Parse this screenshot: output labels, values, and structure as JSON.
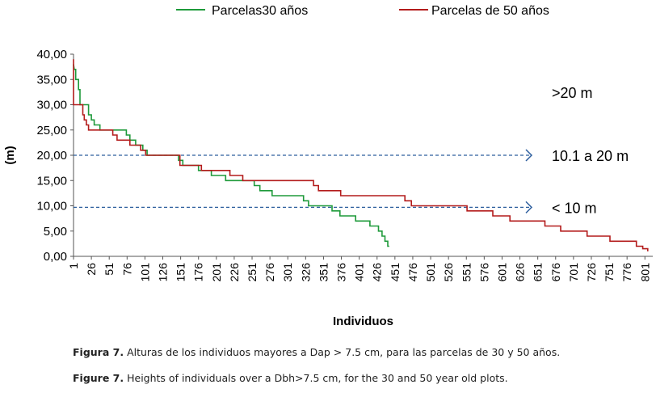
{
  "chart_data": {
    "type": "line",
    "title": "",
    "xlabel": "Individuos",
    "ylabel": "(m)",
    "xlim": [
      1,
      812
    ],
    "ylim": [
      0,
      40
    ],
    "y_ticks": [
      "0,00",
      "5,00",
      "10,00",
      "15,00",
      "20,00",
      "25,00",
      "30,00",
      "35,00",
      "40,00"
    ],
    "x_ticks": [
      "1",
      "26",
      "51",
      "76",
      "101",
      "126",
      "151",
      "176",
      "201",
      "226",
      "251",
      "276",
      "301",
      "326",
      "351",
      "376",
      "401",
      "426",
      "451",
      "476",
      "501",
      "526",
      "551",
      "576",
      "601",
      "626",
      "651",
      "676",
      "701",
      "726",
      "751",
      "776",
      "801"
    ],
    "legend": {
      "placement": "top"
    },
    "series": [
      {
        "name": "Parcelas30 años",
        "color": "#1e9a3a",
        "points": [
          [
            1,
            38
          ],
          [
            2,
            37
          ],
          [
            4,
            37
          ],
          [
            4,
            35
          ],
          [
            8,
            35
          ],
          [
            8,
            33
          ],
          [
            10,
            33
          ],
          [
            10,
            30
          ],
          [
            22,
            30
          ],
          [
            22,
            28
          ],
          [
            26,
            28
          ],
          [
            26,
            27
          ],
          [
            30,
            27
          ],
          [
            30,
            26
          ],
          [
            38,
            26
          ],
          [
            38,
            25
          ],
          [
            75,
            25
          ],
          [
            75,
            24
          ],
          [
            80,
            24
          ],
          [
            80,
            23
          ],
          [
            88,
            23
          ],
          [
            88,
            22
          ],
          [
            98,
            22
          ],
          [
            98,
            21
          ],
          [
            104,
            21
          ],
          [
            104,
            20
          ],
          [
            148,
            20
          ],
          [
            148,
            19
          ],
          [
            154,
            19
          ],
          [
            154,
            18
          ],
          [
            176,
            18
          ],
          [
            176,
            17
          ],
          [
            194,
            17
          ],
          [
            194,
            16
          ],
          [
            214,
            16
          ],
          [
            214,
            15
          ],
          [
            254,
            15
          ],
          [
            254,
            14
          ],
          [
            262,
            14
          ],
          [
            262,
            13
          ],
          [
            279,
            13
          ],
          [
            279,
            12
          ],
          [
            323,
            12
          ],
          [
            323,
            11
          ],
          [
            330,
            11
          ],
          [
            330,
            10
          ],
          [
            363,
            10
          ],
          [
            363,
            9
          ],
          [
            374,
            9
          ],
          [
            374,
            8
          ],
          [
            396,
            8
          ],
          [
            396,
            7
          ],
          [
            416,
            7
          ],
          [
            416,
            6
          ],
          [
            428,
            6
          ],
          [
            428,
            5
          ],
          [
            433,
            5
          ],
          [
            433,
            4
          ],
          [
            437,
            4
          ],
          [
            437,
            3
          ],
          [
            441,
            3
          ],
          [
            441,
            2
          ],
          [
            443,
            2
          ]
        ]
      },
      {
        "name": "Parcelas de 50 años",
        "color": "#b31b1b",
        "points": [
          [
            1,
            39
          ],
          [
            1,
            30
          ],
          [
            14,
            30
          ],
          [
            14,
            28
          ],
          [
            16,
            28
          ],
          [
            16,
            27
          ],
          [
            19,
            27
          ],
          [
            19,
            26
          ],
          [
            22,
            26
          ],
          [
            22,
            25
          ],
          [
            33,
            25
          ],
          [
            33,
            25
          ],
          [
            56,
            25
          ],
          [
            56,
            24
          ],
          [
            62,
            24
          ],
          [
            62,
            23
          ],
          [
            80,
            23
          ],
          [
            80,
            22
          ],
          [
            95,
            22
          ],
          [
            95,
            21
          ],
          [
            102,
            21
          ],
          [
            102,
            20
          ],
          [
            150,
            20
          ],
          [
            150,
            18
          ],
          [
            180,
            18
          ],
          [
            180,
            17
          ],
          [
            220,
            17
          ],
          [
            220,
            16
          ],
          [
            238,
            16
          ],
          [
            238,
            15
          ],
          [
            337,
            15
          ],
          [
            337,
            14
          ],
          [
            344,
            14
          ],
          [
            344,
            13
          ],
          [
            375,
            13
          ],
          [
            375,
            12
          ],
          [
            465,
            12
          ],
          [
            465,
            11
          ],
          [
            474,
            11
          ],
          [
            474,
            10
          ],
          [
            552,
            10
          ],
          [
            552,
            9
          ],
          [
            588,
            9
          ],
          [
            588,
            8
          ],
          [
            612,
            8
          ],
          [
            612,
            7
          ],
          [
            661,
            7
          ],
          [
            661,
            6
          ],
          [
            683,
            6
          ],
          [
            683,
            5
          ],
          [
            720,
            5
          ],
          [
            720,
            4
          ],
          [
            752,
            4
          ],
          [
            752,
            3
          ],
          [
            789,
            3
          ],
          [
            789,
            2
          ],
          [
            798,
            2
          ],
          [
            798,
            1.5
          ],
          [
            805,
            1.5
          ],
          [
            805,
            1
          ]
        ]
      }
    ],
    "annotations": [
      {
        "text": ">20 m",
        "y": 32.5,
        "arrow": false
      },
      {
        "text": "10.1 a 20 m",
        "y": 20,
        "arrow": true
      },
      {
        "text": "< 10 m",
        "y": 9.7,
        "arrow": true
      }
    ]
  },
  "caption": {
    "es_label": "Figura 7.",
    "es_text": "Alturas de los individuos mayores a Dap > 7.5 cm, para las parcelas de 30 y 50 años.",
    "en_label": "Figure 7.",
    "en_text": "Heights of individuals over a Dbh>7.5 cm, for the 30 and 50 year old plots."
  }
}
